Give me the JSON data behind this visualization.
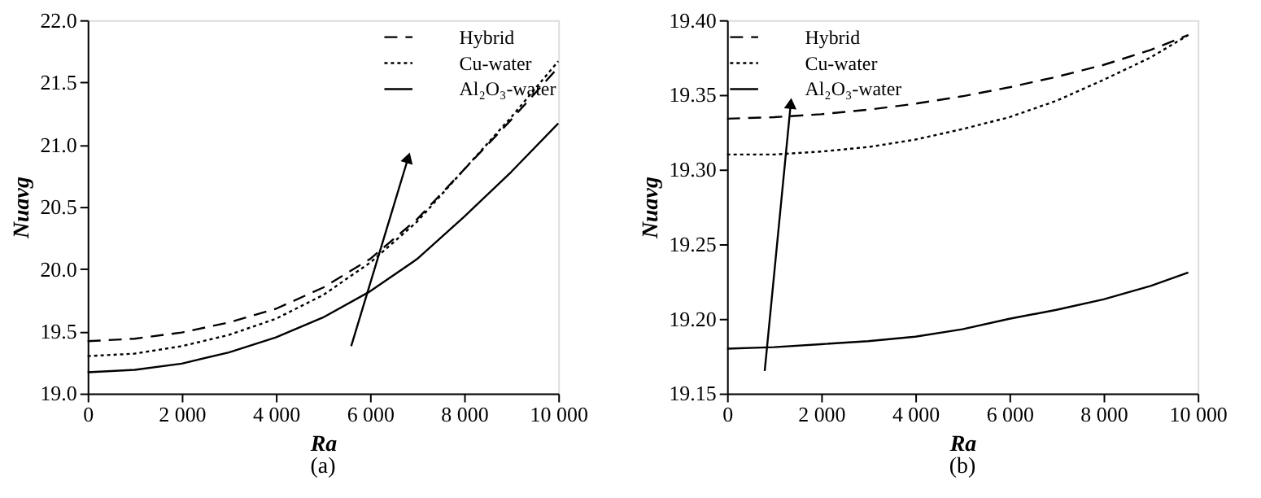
{
  "chart_data": [
    {
      "type": "line",
      "xlabel": "Ra",
      "ylabel": "Nuavg",
      "annotations": [
        "(a)"
      ],
      "legend": "top right",
      "grid": false,
      "x": [
        0,
        1000,
        2000,
        3000,
        4000,
        5000,
        6000,
        7000,
        8000,
        9000,
        10000
      ],
      "xlim": [
        0,
        10000
      ],
      "xticks": [
        0,
        {
          "value": 2000,
          "label": "2 000"
        },
        {
          "value": 4000,
          "label": "4 000"
        },
        {
          "value": 6000,
          "label": "6 000"
        },
        {
          "value": 8000,
          "label": "8 000"
        },
        {
          "value": 10000,
          "label": "10 000"
        }
      ],
      "ylim": [
        19.0,
        22.0
      ],
      "yticks": [
        {
          "value": 19,
          "label": "19.0"
        },
        19.5,
        {
          "value": 20,
          "label": "20.0"
        },
        20.5,
        {
          "value": 21,
          "label": "21.0"
        },
        21.5,
        {
          "value": 22,
          "label": "22.0"
        }
      ],
      "series": [
        {
          "name": "Hybrid",
          "color": "#000000",
          "line_style": "dashed",
          "values": [
            19.42,
            19.44,
            19.49,
            19.57,
            19.68,
            19.85,
            20.08,
            20.4,
            20.8,
            21.2,
            21.62
          ]
        },
        {
          "name": "Cu-water",
          "color": "#000000",
          "line_style": "dotted",
          "values": [
            19.3,
            19.32,
            19.38,
            19.47,
            19.6,
            19.79,
            20.05,
            20.38,
            20.8,
            21.22,
            21.67
          ]
        },
        {
          "name": "Al₂O₃-water",
          "color": "#000000",
          "line_style": "solid",
          "values": [
            19.17,
            19.19,
            19.24,
            19.33,
            19.45,
            19.61,
            19.82,
            20.08,
            20.42,
            20.78,
            21.17
          ]
        }
      ]
    },
    {
      "type": "line",
      "xlabel": "Ra",
      "ylabel": "Nuavg",
      "annotations": [
        "(b)"
      ],
      "legend": "top left",
      "grid": false,
      "x": [
        0,
        1000,
        2000,
        3000,
        4000,
        5000,
        6000,
        7000,
        8000,
        9000,
        9800
      ],
      "xlim": [
        0,
        10000
      ],
      "xticks": [
        0,
        {
          "value": 2000,
          "label": "2 000"
        },
        {
          "value": 4000,
          "label": "4 000"
        },
        {
          "value": 6000,
          "label": "6 000"
        },
        {
          "value": 8000,
          "label": "8 000"
        },
        {
          "value": 10000,
          "label": "10 000"
        }
      ],
      "ylim": [
        19.15,
        19.4
      ],
      "yticks": [
        19.15,
        {
          "value": 19.2,
          "label": "19.20"
        },
        19.25,
        {
          "value": 19.3,
          "label": "19.30"
        },
        19.35,
        {
          "value": 19.4,
          "label": "19.40"
        }
      ],
      "series": [
        {
          "name": "Hybrid",
          "color": "#000000",
          "line_style": "dashed",
          "values": [
            19.334,
            19.335,
            19.337,
            19.34,
            19.344,
            19.349,
            19.355,
            19.362,
            19.37,
            19.38,
            19.39
          ]
        },
        {
          "name": "Cu-water",
          "color": "#000000",
          "line_style": "dotted",
          "values": [
            19.31,
            19.31,
            19.312,
            19.315,
            19.32,
            19.327,
            19.335,
            19.346,
            19.36,
            19.375,
            19.39
          ]
        },
        {
          "name": "Al₂O₃-water",
          "color": "#000000",
          "line_style": "solid",
          "values": [
            19.18,
            19.181,
            19.183,
            19.185,
            19.188,
            19.193,
            19.2,
            19.206,
            19.213,
            19.222,
            19.231
          ]
        }
      ]
    }
  ]
}
